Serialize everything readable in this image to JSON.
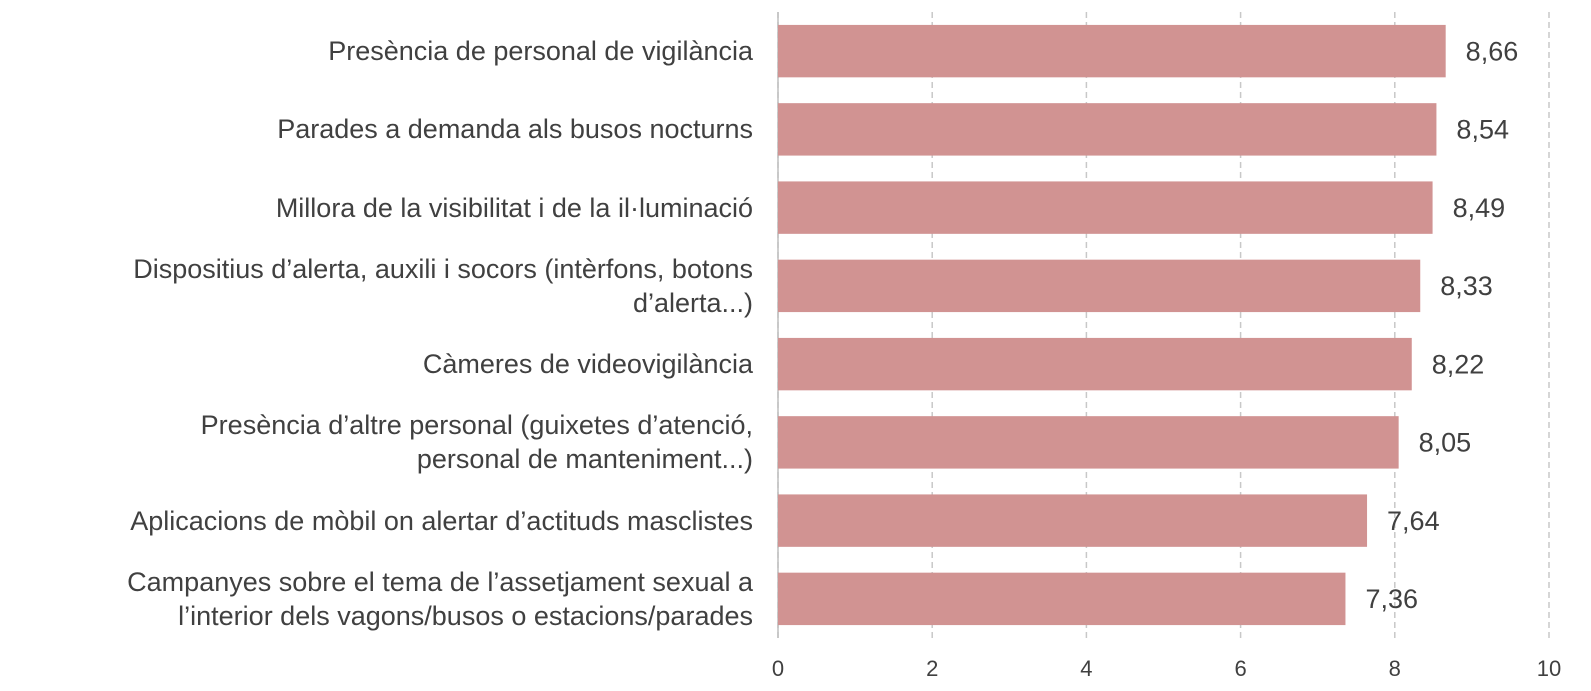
{
  "chart_data": {
    "type": "bar",
    "orientation": "horizontal",
    "categories": [
      "Presència de personal de vigilància",
      "Parades a demanda als busos nocturns",
      "Millora de la visibilitat i de la il·luminació",
      "Dispositius d’alerta, auxili i socors (intèrfons, botons\nd’alerta...)",
      "Càmeres de videovigilància",
      "Presència d’altre personal (guixetes d’atenció,\npersonal de manteniment...)",
      "Aplicacions de mòbil on alertar d’actituds masclistes",
      "Campanyes sobre el tema de l’assetjament sexual a\nl’interior dels vagons/busos o estacions/parades"
    ],
    "values": [
      8.66,
      8.54,
      8.49,
      8.33,
      8.22,
      8.05,
      7.64,
      7.36
    ],
    "value_labels": [
      "8,66",
      "8,54",
      "8,49",
      "8,33",
      "8,22",
      "8,05",
      "7,64",
      "7,36"
    ],
    "color": "#d19392",
    "xlim": [
      0,
      10
    ],
    "xticks": [
      0,
      2,
      4,
      6,
      8,
      10
    ],
    "grid": true
  }
}
